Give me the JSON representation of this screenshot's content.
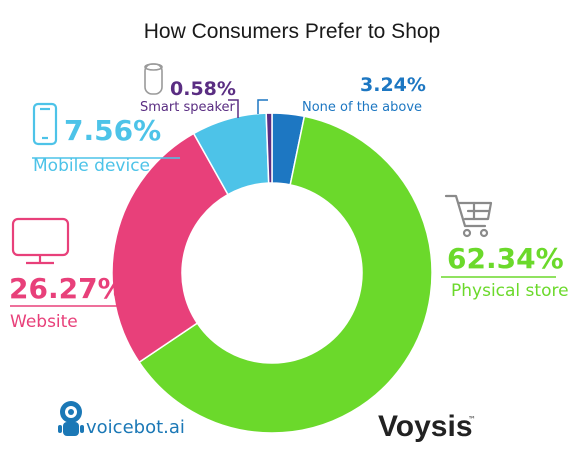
{
  "chart_data": {
    "type": "pie",
    "title": "How Consumers Prefer to Shop",
    "donut": true,
    "categories": [
      "Physical store",
      "Website",
      "Mobile device",
      "Smart speaker",
      "None of the above"
    ],
    "values": [
      62.34,
      26.27,
      7.56,
      0.58,
      3.24
    ],
    "value_labels": [
      "62.34%",
      "26.27%",
      "7.56%",
      "0.58%",
      "3.24%"
    ],
    "colors": [
      "#6bd92b",
      "#e8407a",
      "#4dc3e8",
      "#5a2d82",
      "#1d77c2"
    ],
    "icons": [
      "shopping-cart-icon",
      "monitor-icon",
      "smartphone-icon",
      "smart-speaker-icon",
      ""
    ]
  },
  "branding": {
    "left_logo": "voicebot.ai",
    "right_logo": "Voysis",
    "right_logo_mark": "™"
  }
}
